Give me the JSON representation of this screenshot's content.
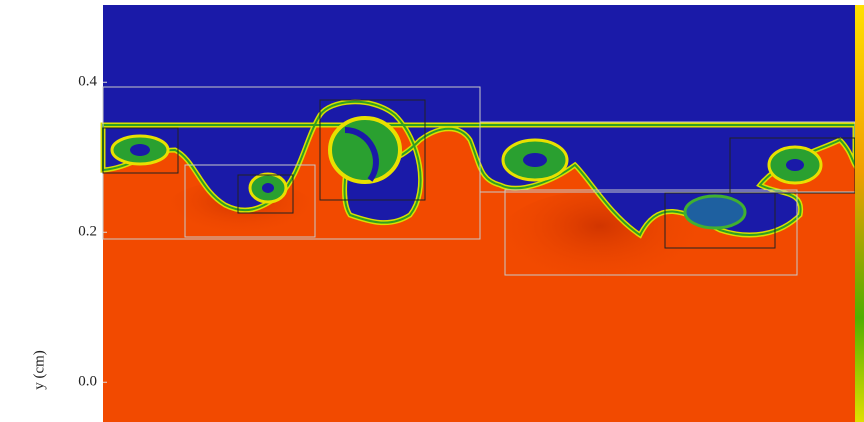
{
  "chart_data": {
    "type": "image",
    "y_label": "y (cm)",
    "ylim": [
      -0.053,
      0.503
    ],
    "yticks": [
      0.4,
      0.2,
      {
        "value": 0,
        "label": "0.0"
      }
    ]
  }
}
